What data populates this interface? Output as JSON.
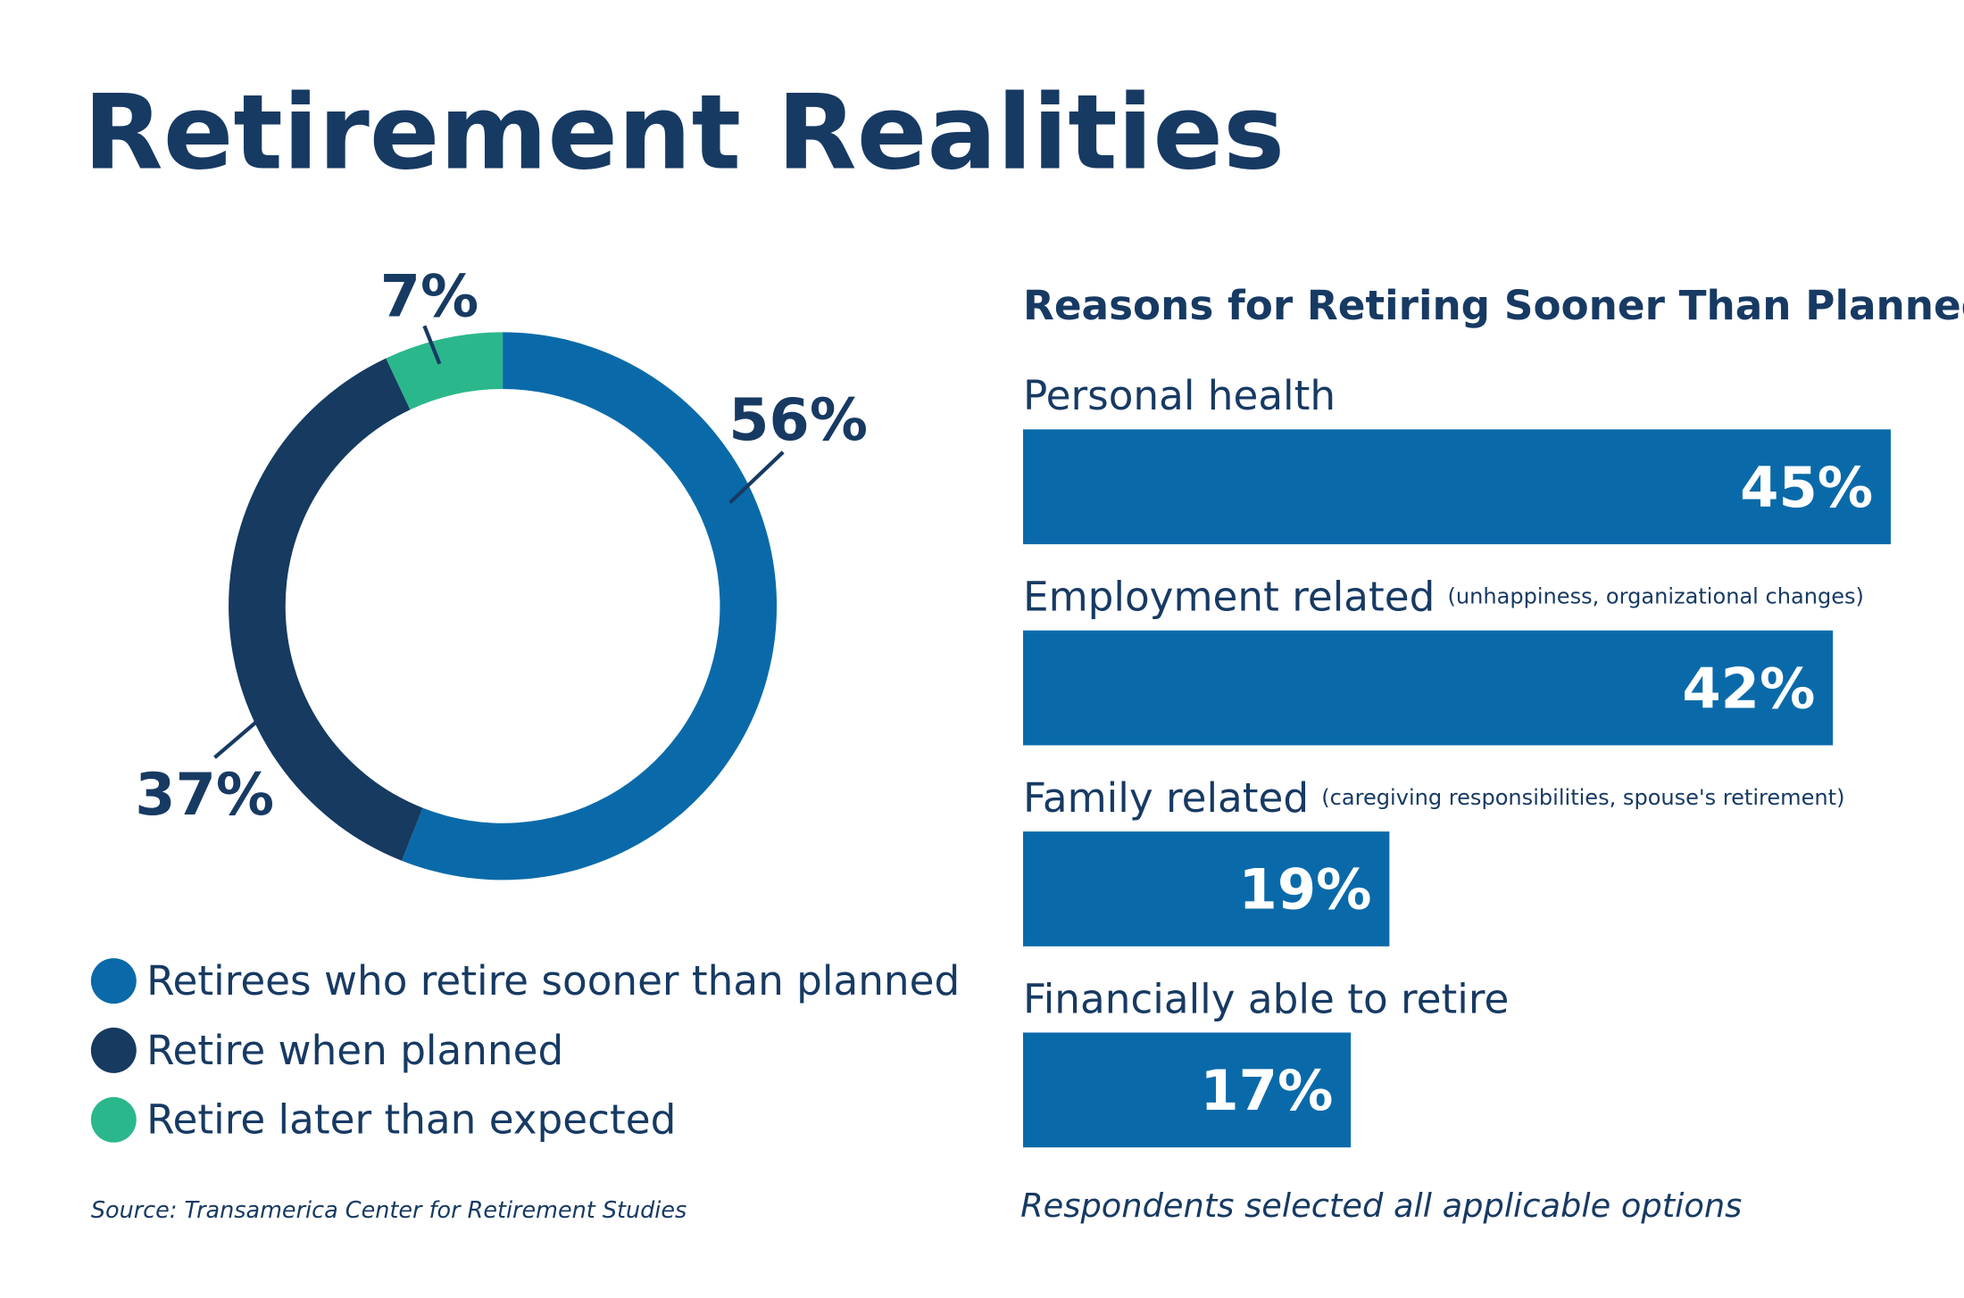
{
  "title": "Retirement Realities",
  "source": "Source: Transamerica Center for Retirement Studies",
  "chart_data": [
    {
      "type": "pie",
      "donut": true,
      "categories": [
        "Retirees who retire sooner than planned",
        "Retire when planned",
        "Retire later than expected"
      ],
      "values": [
        56,
        37,
        7
      ],
      "value_labels": [
        "56%",
        "37%",
        "7%"
      ],
      "colors": [
        "#0a6aa9",
        "#163a60",
        "#2bb78c"
      ]
    },
    {
      "type": "bar",
      "orientation": "horizontal",
      "title": "Reasons for Retiring Sooner Than Planned",
      "categories": [
        "Personal health",
        "Employment related",
        "Family related",
        "Financially able to retire"
      ],
      "category_notes": [
        null,
        "(unhappiness, organizational changes)",
        "(caregiving responsibilities, spouse's retirement)",
        null
      ],
      "values": [
        45,
        42,
        19,
        17
      ],
      "value_labels": [
        "45%",
        "42%",
        "19%",
        "17%"
      ],
      "color": "#0a6aa9",
      "note": "Respondents selected all applicable options"
    }
  ]
}
